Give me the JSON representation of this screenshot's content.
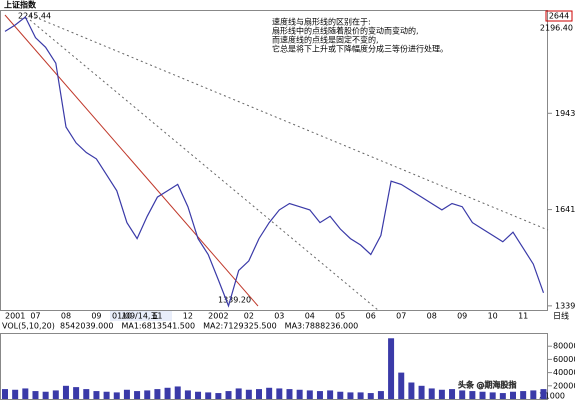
{
  "chart_data": [
    {
      "type": "line",
      "title": "上证指数",
      "color": "#3a3aa8",
      "categories": [
        "2001",
        null,
        null,
        "07",
        null,
        null,
        "08",
        null,
        null,
        "09",
        null,
        null,
        "10",
        null,
        null,
        "11",
        null,
        null,
        "12",
        null,
        null,
        "2002",
        null,
        null,
        "02",
        null,
        null,
        "03",
        null,
        null,
        "04",
        null,
        null,
        "05",
        null,
        null,
        "06",
        null,
        null,
        "07",
        null,
        null,
        "08",
        null,
        null,
        "09",
        null,
        null,
        "10",
        null,
        null,
        "11",
        null,
        null
      ],
      "values": [
        2200,
        2220,
        2245,
        2180,
        2150,
        2100,
        1900,
        1850,
        1820,
        1800,
        1750,
        1700,
        1600,
        1550,
        1620,
        1680,
        1700,
        1720,
        1650,
        1550,
        1500,
        1420,
        1339,
        1450,
        1480,
        1550,
        1600,
        1640,
        1660,
        1650,
        1640,
        1600,
        1620,
        1580,
        1550,
        1530,
        1500,
        1560,
        1730,
        1720,
        1700,
        1680,
        1660,
        1640,
        1660,
        1650,
        1600,
        1580,
        1560,
        1540,
        1570,
        1520,
        1470,
        1380
      ],
      "ylim": [
        1326,
        2267
      ],
      "yticks": [
        1339,
        1641,
        1943
      ],
      "annotations": [
        "速度线与扇形线的区别在于:",
        "扇形线中的点线随着股价的变动而变动的,",
        "而速度线的点线是固定不变的,",
        "它总是将下上升或下降幅度分成三等份进行处理。"
      ],
      "high_label": "2245.44",
      "low_label": "1339.20",
      "corner_code": "2644",
      "corner_price": "2196.40",
      "cursor_date": "01/09/14,五",
      "period": "日线"
    },
    {
      "type": "bar",
      "title": "VOL(5,10,20)",
      "color": "#3a3aa8",
      "values": [
        15000,
        14000,
        16000,
        12000,
        11000,
        13000,
        20000,
        18000,
        15000,
        12000,
        11000,
        10000,
        14000,
        12000,
        13000,
        15000,
        17000,
        19000,
        13000,
        11000,
        10000,
        9000,
        12000,
        16000,
        14000,
        15000,
        17000,
        16000,
        15000,
        14000,
        13000,
        12000,
        13000,
        11000,
        10000,
        10000,
        9000,
        12000,
        92000,
        40000,
        25000,
        20000,
        16000,
        14000,
        15000,
        13000,
        12000,
        11000,
        10000,
        9000,
        11000,
        12000,
        13000,
        15000
      ],
      "ylim": [
        0,
        100000
      ],
      "yticks": [
        20000,
        40000,
        60000,
        80000
      ],
      "unit_label": "X1000",
      "info": [
        "8542039.000",
        "MA1:6813541.500",
        "MA2:7129325.500",
        "MA3:7888236.000"
      ]
    }
  ],
  "watermark": "头条 @期海股指"
}
